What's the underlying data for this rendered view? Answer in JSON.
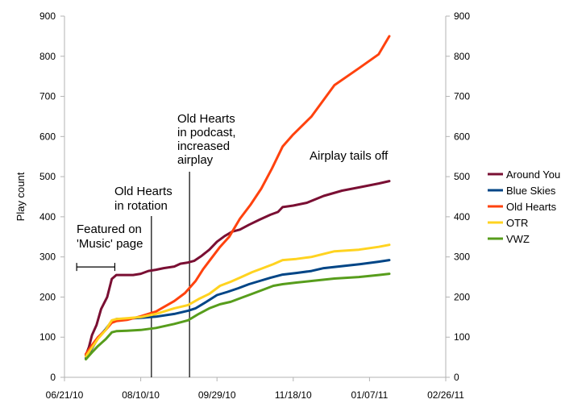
{
  "chart_data": {
    "type": "line",
    "title": "",
    "xlabel": "",
    "ylabel": "Play count",
    "x_type": "date",
    "xlim": [
      "2010-06-21",
      "2011-02-26"
    ],
    "ylim": [
      0,
      900
    ],
    "grid": false,
    "legend_position": "right",
    "x_ticks": [
      {
        "date": "2010-06-21",
        "label": "06/21/10"
      },
      {
        "date": "2010-08-10",
        "label": "08/10/10"
      },
      {
        "date": "2010-09-29",
        "label": "09/29/10"
      },
      {
        "date": "2010-11-18",
        "label": "11/18/10"
      },
      {
        "date": "2011-01-07",
        "label": "01/07/11"
      },
      {
        "date": "2011-02-26",
        "label": "02/26/11"
      }
    ],
    "y_ticks": [
      0,
      100,
      200,
      300,
      400,
      500,
      600,
      700,
      800,
      900
    ],
    "series": [
      {
        "name": "Around You",
        "color": "#7a0f33",
        "points": [
          [
            "2010-07-05",
            55
          ],
          [
            "2010-07-07",
            75
          ],
          [
            "2010-07-09",
            105
          ],
          [
            "2010-07-12",
            130
          ],
          [
            "2010-07-15",
            170
          ],
          [
            "2010-07-19",
            200
          ],
          [
            "2010-07-22",
            245
          ],
          [
            "2010-07-25",
            255
          ],
          [
            "2010-07-30",
            255
          ],
          [
            "2010-08-05",
            255
          ],
          [
            "2010-08-10",
            258
          ],
          [
            "2010-08-15",
            265
          ],
          [
            "2010-08-20",
            268
          ],
          [
            "2010-08-25",
            272
          ],
          [
            "2010-09-01",
            276
          ],
          [
            "2010-09-05",
            283
          ],
          [
            "2010-09-10",
            286
          ],
          [
            "2010-09-14",
            290
          ],
          [
            "2010-09-19",
            303
          ],
          [
            "2010-09-24",
            318
          ],
          [
            "2010-09-29",
            338
          ],
          [
            "2010-10-04",
            352
          ],
          [
            "2010-10-09",
            363
          ],
          [
            "2010-10-14",
            368
          ],
          [
            "2010-10-20",
            380
          ],
          [
            "2010-10-27",
            393
          ],
          [
            "2010-11-03",
            405
          ],
          [
            "2010-11-08",
            412
          ],
          [
            "2010-11-11",
            424
          ],
          [
            "2010-11-18",
            428
          ],
          [
            "2010-11-27",
            435
          ],
          [
            "2010-12-08",
            452
          ],
          [
            "2010-12-20",
            465
          ],
          [
            "2011-01-01",
            474
          ],
          [
            "2011-01-13",
            483
          ],
          [
            "2011-01-20",
            489
          ]
        ]
      },
      {
        "name": "Blue Skies",
        "color": "#004586",
        "points": [
          [
            "2010-07-05",
            48
          ],
          [
            "2010-07-09",
            72
          ],
          [
            "2010-07-13",
            98
          ],
          [
            "2010-07-18",
            120
          ],
          [
            "2010-07-22",
            140
          ],
          [
            "2010-07-25",
            145
          ],
          [
            "2010-08-01",
            146
          ],
          [
            "2010-08-10",
            148
          ],
          [
            "2010-08-20",
            151
          ],
          [
            "2010-09-01",
            158
          ],
          [
            "2010-09-10",
            166
          ],
          [
            "2010-09-15",
            172
          ],
          [
            "2010-09-22",
            188
          ],
          [
            "2010-09-29",
            205
          ],
          [
            "2010-10-06",
            213
          ],
          [
            "2010-10-13",
            222
          ],
          [
            "2010-10-20",
            232
          ],
          [
            "2010-10-27",
            240
          ],
          [
            "2010-11-03",
            248
          ],
          [
            "2010-11-11",
            256
          ],
          [
            "2010-11-20",
            260
          ],
          [
            "2010-11-30",
            265
          ],
          [
            "2010-12-08",
            272
          ],
          [
            "2010-12-20",
            277
          ],
          [
            "2011-01-01",
            282
          ],
          [
            "2011-01-13",
            288
          ],
          [
            "2011-01-20",
            292
          ]
        ]
      },
      {
        "name": "Old Hearts",
        "color": "#ff420e",
        "points": [
          [
            "2010-07-05",
            58
          ],
          [
            "2010-07-09",
            80
          ],
          [
            "2010-07-13",
            100
          ],
          [
            "2010-07-18",
            118
          ],
          [
            "2010-07-22",
            136
          ],
          [
            "2010-07-25",
            140
          ],
          [
            "2010-08-01",
            143
          ],
          [
            "2010-08-10",
            152
          ],
          [
            "2010-08-20",
            164
          ],
          [
            "2010-09-01",
            190
          ],
          [
            "2010-09-08",
            210
          ],
          [
            "2010-09-15",
            240
          ],
          [
            "2010-09-20",
            270
          ],
          [
            "2010-09-25",
            295
          ],
          [
            "2010-10-01",
            325
          ],
          [
            "2010-10-07",
            350
          ],
          [
            "2010-10-14",
            395
          ],
          [
            "2010-10-21",
            430
          ],
          [
            "2010-10-28",
            470
          ],
          [
            "2010-11-04",
            520
          ],
          [
            "2010-11-11",
            575
          ],
          [
            "2010-11-18",
            605
          ],
          [
            "2010-11-30",
            650
          ],
          [
            "2010-12-15",
            728
          ],
          [
            "2010-12-31",
            770
          ],
          [
            "2011-01-13",
            805
          ],
          [
            "2011-01-20",
            850
          ]
        ]
      },
      {
        "name": "OTR",
        "color": "#ffd320",
        "points": [
          [
            "2010-07-05",
            52
          ],
          [
            "2010-07-09",
            74
          ],
          [
            "2010-07-13",
            96
          ],
          [
            "2010-07-18",
            118
          ],
          [
            "2010-07-22",
            142
          ],
          [
            "2010-07-25",
            145
          ],
          [
            "2010-08-01",
            147
          ],
          [
            "2010-08-10",
            150
          ],
          [
            "2010-08-20",
            158
          ],
          [
            "2010-09-01",
            172
          ],
          [
            "2010-09-10",
            180
          ],
          [
            "2010-09-17",
            195
          ],
          [
            "2010-09-24",
            208
          ],
          [
            "2010-10-01",
            228
          ],
          [
            "2010-10-08",
            238
          ],
          [
            "2010-10-15",
            250
          ],
          [
            "2010-10-22",
            262
          ],
          [
            "2010-10-29",
            272
          ],
          [
            "2010-11-05",
            282
          ],
          [
            "2010-11-11",
            292
          ],
          [
            "2010-11-20",
            295
          ],
          [
            "2010-11-30",
            300
          ],
          [
            "2010-12-15",
            314
          ],
          [
            "2010-12-31",
            318
          ],
          [
            "2011-01-13",
            325
          ],
          [
            "2011-01-20",
            330
          ]
        ]
      },
      {
        "name": "VWZ",
        "color": "#579d1c",
        "points": [
          [
            "2010-07-05",
            45
          ],
          [
            "2010-07-09",
            62
          ],
          [
            "2010-07-13",
            78
          ],
          [
            "2010-07-18",
            95
          ],
          [
            "2010-07-22",
            112
          ],
          [
            "2010-07-25",
            115
          ],
          [
            "2010-08-01",
            116
          ],
          [
            "2010-08-10",
            118
          ],
          [
            "2010-08-20",
            123
          ],
          [
            "2010-09-01",
            133
          ],
          [
            "2010-09-10",
            142
          ],
          [
            "2010-09-17",
            158
          ],
          [
            "2010-09-24",
            172
          ],
          [
            "2010-10-01",
            182
          ],
          [
            "2010-10-08",
            188
          ],
          [
            "2010-10-15",
            198
          ],
          [
            "2010-10-22",
            208
          ],
          [
            "2010-10-29",
            218
          ],
          [
            "2010-11-05",
            228
          ],
          [
            "2010-11-11",
            232
          ],
          [
            "2010-11-20",
            236
          ],
          [
            "2010-11-30",
            240
          ],
          [
            "2010-12-15",
            246
          ],
          [
            "2010-12-31",
            250
          ],
          [
            "2011-01-13",
            255
          ],
          [
            "2011-01-20",
            258
          ]
        ]
      }
    ],
    "event_lines": [
      {
        "date": "2010-08-17"
      },
      {
        "date": "2010-09-11"
      }
    ],
    "featured_period": {
      "start": "2010-06-29",
      "end": "2010-07-24",
      "y": 275
    },
    "annotations": [
      {
        "lines": [
          "Featured on",
          "'Music' page"
        ]
      },
      {
        "lines": [
          "Old Hearts",
          "in rotation"
        ]
      },
      {
        "lines": [
          "Old Hearts",
          "in podcast,",
          "increased",
          "airplay"
        ]
      },
      {
        "lines": [
          "Airplay tails off"
        ]
      }
    ]
  }
}
